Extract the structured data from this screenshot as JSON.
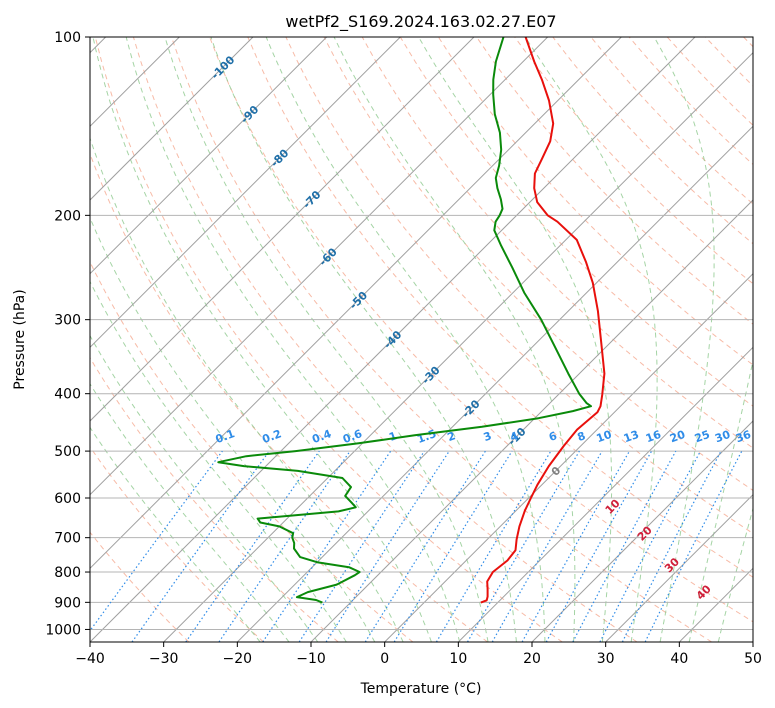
{
  "chart_data": {
    "type": "line",
    "title": "wetPf2_S169.2024.163.02.27.E07",
    "xlabel": "Temperature (°C)",
    "ylabel": "Pressure (hPa)",
    "xlim": [
      -40,
      50
    ],
    "ylim": [
      1050,
      100
    ],
    "y_scale": "log",
    "x_ticks": [
      -40,
      -30,
      -20,
      -10,
      0,
      10,
      20,
      30,
      40,
      50
    ],
    "x_tick_labels": [
      "−40",
      "−30",
      "−20",
      "−10",
      "0",
      "10",
      "20",
      "30",
      "40",
      "50"
    ],
    "y_ticks": [
      1000,
      900,
      800,
      700,
      600,
      500,
      400,
      300,
      200,
      100
    ],
    "y_tick_labels": [
      "1000",
      "900",
      "800",
      "700",
      "600",
      "500",
      "400",
      "300",
      "200",
      "100"
    ],
    "grid": true,
    "skew": "45 degree isotherms",
    "colors": {
      "temperature": "#e8100c",
      "dewpoint": "#0a8a0a",
      "isotherm": "#a0a0a0",
      "isotherm_label": "#1f6fa8",
      "dry_adiabat": "#f4a48a",
      "moist_adiabat": "#8fc98f",
      "mixing_ratio": "#2f8ce8",
      "mixing_ratio_label": "#2f8ce8",
      "theta_e_label": "#d0203a",
      "grid": "#b4b4b4"
    },
    "series": [
      {
        "key": "temperature",
        "points": [
          [
            901,
            7.7
          ],
          [
            893,
            8.2
          ],
          [
            880,
            7.8
          ],
          [
            855,
            6.8
          ],
          [
            830,
            5.7
          ],
          [
            800,
            5.2
          ],
          [
            765,
            5.6
          ],
          [
            735,
            5.3
          ],
          [
            705,
            4.0
          ],
          [
            670,
            2.6
          ],
          [
            630,
            1.2
          ],
          [
            600,
            0.3
          ],
          [
            570,
            -0.6
          ],
          [
            530,
            -1.6
          ],
          [
            490,
            -2.3
          ],
          [
            460,
            -2.7
          ],
          [
            430,
            -2.3
          ],
          [
            420,
            -2.7
          ],
          [
            402,
            -4.0
          ],
          [
            370,
            -6.6
          ],
          [
            330,
            -11.0
          ],
          [
            290,
            -16.0
          ],
          [
            260,
            -20.5
          ],
          [
            240,
            -24.2
          ],
          [
            220,
            -28.5
          ],
          [
            205,
            -33.6
          ],
          [
            200,
            -35.8
          ],
          [
            190,
            -39.0
          ],
          [
            180,
            -41.3
          ],
          [
            170,
            -43.2
          ],
          [
            160,
            -44.3
          ],
          [
            150,
            -45.5
          ],
          [
            140,
            -47.5
          ],
          [
            128,
            -51.2
          ],
          [
            118,
            -55.0
          ],
          [
            110,
            -58.5
          ],
          [
            100,
            -63.0
          ]
        ]
      },
      {
        "key": "dewpoint",
        "points": [
          [
            901,
            -13.8
          ],
          [
            892,
            -15.0
          ],
          [
            882,
            -18.0
          ],
          [
            865,
            -17.2
          ],
          [
            840,
            -14.3
          ],
          [
            810,
            -13.1
          ],
          [
            800,
            -12.9
          ],
          [
            785,
            -15.0
          ],
          [
            770,
            -20.0
          ],
          [
            755,
            -23.0
          ],
          [
            730,
            -25.0
          ],
          [
            715,
            -25.7
          ],
          [
            700,
            -26.7
          ],
          [
            688,
            -27.2
          ],
          [
            670,
            -30.0
          ],
          [
            660,
            -33.1
          ],
          [
            650,
            -34.0
          ],
          [
            643,
            -30.0
          ],
          [
            632,
            -24.0
          ],
          [
            622,
            -22.2
          ],
          [
            610,
            -23.5
          ],
          [
            595,
            -25.2
          ],
          [
            575,
            -25.6
          ],
          [
            555,
            -28.0
          ],
          [
            540,
            -35.0
          ],
          [
            530,
            -43.0
          ],
          [
            522,
            -47.0
          ],
          [
            510,
            -44.0
          ],
          [
            500,
            -38.0
          ],
          [
            485,
            -30.5
          ],
          [
            470,
            -24.0
          ],
          [
            455,
            -16.0
          ],
          [
            440,
            -9.5
          ],
          [
            428,
            -5.8
          ],
          [
            420,
            -4.0
          ],
          [
            415,
            -5.0
          ],
          [
            400,
            -7.3
          ],
          [
            370,
            -11.5
          ],
          [
            330,
            -17.5
          ],
          [
            300,
            -22.5
          ],
          [
            270,
            -28.5
          ],
          [
            245,
            -33.5
          ],
          [
            225,
            -38.0
          ],
          [
            212,
            -41.0
          ],
          [
            205,
            -42.0
          ],
          [
            200,
            -42.3
          ],
          [
            195,
            -42.8
          ],
          [
            188,
            -44.3
          ],
          [
            180,
            -46.3
          ],
          [
            173,
            -47.9
          ],
          [
            165,
            -49.1
          ],
          [
            155,
            -51.0
          ],
          [
            145,
            -53.5
          ],
          [
            135,
            -56.7
          ],
          [
            125,
            -59.6
          ],
          [
            118,
            -61.6
          ],
          [
            110,
            -63.7
          ],
          [
            100,
            -66.0
          ]
        ]
      }
    ],
    "isotherm_labels": [
      "-100",
      "-90",
      "-80",
      "-70",
      "-60",
      "-50",
      "-40",
      "-30",
      "-20",
      "-10",
      "0"
    ],
    "isotherm_label_values": [
      -100,
      -90,
      -80,
      -70,
      -60,
      -50,
      -40,
      -30,
      -20,
      -10,
      0
    ],
    "mixing_ratio_labels": [
      "0.1",
      "0.2",
      "0.4",
      "0.6",
      "1",
      "1.5",
      "2",
      "3",
      "4",
      "6",
      "8",
      "10",
      "13",
      "16",
      "20",
      "25",
      "30",
      "36"
    ],
    "mixing_ratio_values": [
      0.1,
      0.2,
      0.4,
      0.6,
      1,
      1.5,
      2,
      3,
      4,
      6,
      8,
      10,
      13,
      16,
      20,
      25,
      30,
      36
    ],
    "theta_e_labels": [
      "10",
      "20",
      "30",
      "40"
    ],
    "theta_e_values": [
      10,
      20,
      30,
      40
    ]
  }
}
